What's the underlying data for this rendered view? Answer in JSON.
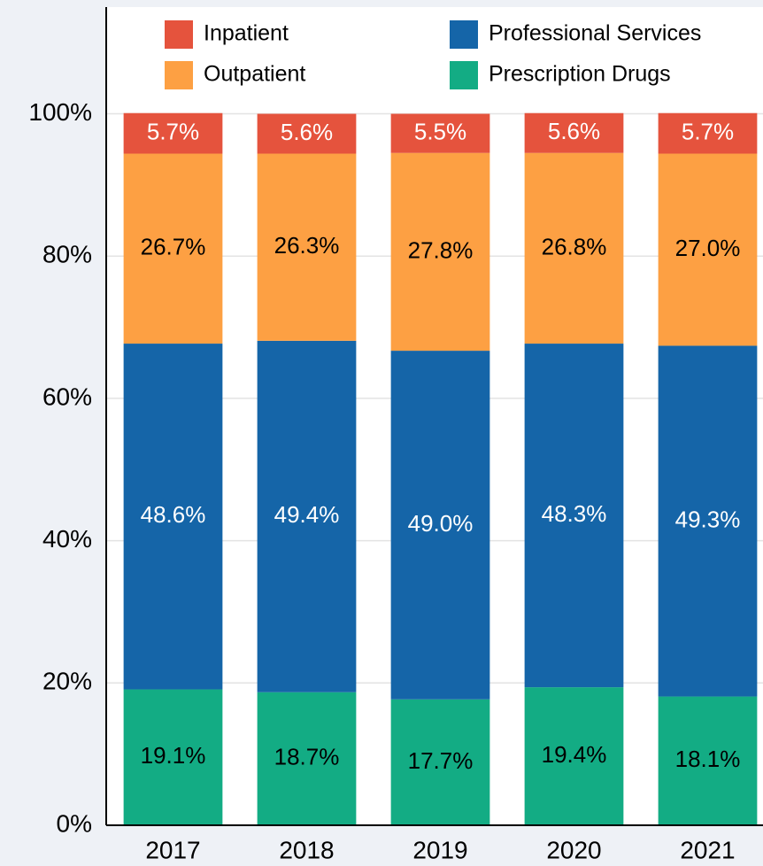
{
  "chart_data": {
    "type": "stacked_bar",
    "categories": [
      "2017",
      "2018",
      "2019",
      "2020",
      "2021"
    ],
    "series": [
      {
        "name": "Prescription Drugs",
        "color": "#13ac84",
        "label_color": "#000000",
        "values": [
          19.1,
          18.7,
          17.7,
          19.4,
          18.1
        ],
        "value_labels": [
          "19.1%",
          "18.7%",
          "17.7%",
          "19.4%",
          "18.1%"
        ]
      },
      {
        "name": "Professional Services",
        "color": "#1565a8",
        "label_color": "#ffffff",
        "values": [
          48.6,
          49.4,
          49.0,
          48.3,
          49.3
        ],
        "value_labels": [
          "48.6%",
          "49.4%",
          "49.0%",
          "48.3%",
          "49.3%"
        ]
      },
      {
        "name": "Outpatient",
        "color": "#fda043",
        "label_color": "#000000",
        "values": [
          26.7,
          26.3,
          27.8,
          26.8,
          27.0
        ],
        "value_labels": [
          "26.7%",
          "26.3%",
          "27.8%",
          "26.8%",
          "27.0%"
        ]
      },
      {
        "name": "Inpatient",
        "color": "#e5533d",
        "label_color": "#ffffff",
        "values": [
          5.7,
          5.6,
          5.5,
          5.6,
          5.7
        ],
        "value_labels": [
          "5.7%",
          "5.6%",
          "5.5%",
          "5.6%",
          "5.7%"
        ]
      }
    ],
    "ylim": [
      0,
      115
    ],
    "yticks": [
      {
        "value": 0,
        "label": "0%"
      },
      {
        "value": 20,
        "label": "20%"
      },
      {
        "value": 40,
        "label": "40%"
      },
      {
        "value": 60,
        "label": "60%"
      },
      {
        "value": 80,
        "label": "80%"
      },
      {
        "value": 100,
        "label": "100%"
      }
    ],
    "grid": true,
    "legend": "top"
  }
}
